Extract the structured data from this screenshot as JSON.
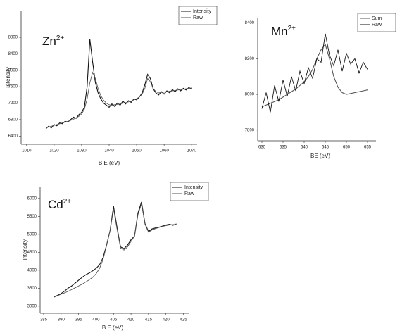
{
  "chart_data": [
    {
      "type": "line",
      "panel_label": {
        "element": "Zn",
        "charge": "2+"
      },
      "x_label": "B.E (eV)",
      "y_label": "Intensity",
      "legend": "upper right",
      "xlim": [
        1008,
        1072
      ],
      "xticks": [
        1010,
        1020,
        1030,
        1040,
        1050,
        1060,
        1070
      ],
      "ylim": [
        6200,
        9450
      ],
      "yticks": [
        6400,
        6800,
        7200,
        7600,
        8000,
        8400,
        8800
      ],
      "x": [
        1017,
        1018,
        1019,
        1020,
        1021,
        1022,
        1023,
        1024,
        1025,
        1026,
        1027,
        1028,
        1029,
        1030,
        1031,
        1032,
        1033,
        1034,
        1035,
        1036,
        1037,
        1038,
        1039,
        1040,
        1041,
        1042,
        1043,
        1044,
        1045,
        1046,
        1047,
        1048,
        1049,
        1050,
        1051,
        1052,
        1053,
        1054,
        1055,
        1056,
        1057,
        1058,
        1059,
        1060,
        1061,
        1062,
        1063,
        1064,
        1065,
        1066,
        1067,
        1068,
        1069,
        1070
      ],
      "series": [
        {
          "name": "Intensity",
          "color": "#111111",
          "values": [
            6580,
            6640,
            6600,
            6680,
            6650,
            6720,
            6700,
            6760,
            6740,
            6800,
            6860,
            6830,
            6920,
            6980,
            7100,
            7600,
            8750,
            8200,
            7700,
            7450,
            7300,
            7200,
            7150,
            7100,
            7180,
            7120,
            7200,
            7150,
            7250,
            7180,
            7260,
            7220,
            7300,
            7280,
            7350,
            7450,
            7650,
            7900,
            7800,
            7550,
            7450,
            7400,
            7480,
            7420,
            7500,
            7450,
            7530,
            7480,
            7550,
            7500,
            7560,
            7520,
            7580,
            7540
          ]
        },
        {
          "name": "Raw",
          "color": "#555555",
          "values": [
            6600,
            6620,
            6640,
            6660,
            6680,
            6700,
            6720,
            6740,
            6760,
            6780,
            6810,
            6840,
            6880,
            6940,
            7050,
            7300,
            7700,
            7950,
            7800,
            7550,
            7380,
            7270,
            7200,
            7160,
            7150,
            7160,
            7170,
            7180,
            7200,
            7210,
            7230,
            7250,
            7280,
            7310,
            7350,
            7420,
            7560,
            7800,
            7720,
            7560,
            7480,
            7450,
            7460,
            7470,
            7480,
            7490,
            7500,
            7510,
            7520,
            7530,
            7540,
            7550,
            7560,
            7570
          ]
        }
      ]
    },
    {
      "type": "line",
      "panel_label": {
        "element": "Mn",
        "charge": "2+"
      },
      "x_label": "BE (eV)",
      "legend": "upper right",
      "xlim": [
        629,
        657
      ],
      "xticks": [
        630,
        635,
        640,
        645,
        650,
        655
      ],
      "ylim": [
        7740,
        8430
      ],
      "yticks": [
        7800,
        8000,
        8200,
        8400
      ],
      "x": [
        630,
        631,
        632,
        633,
        634,
        635,
        636,
        637,
        638,
        639,
        640,
        641,
        642,
        643,
        644,
        645,
        646,
        647,
        648,
        649,
        650,
        651,
        652,
        653,
        654,
        655
      ],
      "series": [
        {
          "name": "Sum",
          "color": "#555555",
          "values": [
            7930,
            7940,
            7950,
            7960,
            7970,
            7985,
            8000,
            8015,
            8030,
            8050,
            8070,
            8100,
            8140,
            8200,
            8250,
            8280,
            8200,
            8100,
            8040,
            8010,
            8000,
            8005,
            8010,
            8015,
            8020,
            8025
          ]
        },
        {
          "name": "Raw",
          "color": "#111111",
          "values": [
            7920,
            8010,
            7900,
            8050,
            7960,
            8080,
            7990,
            8100,
            8020,
            8130,
            8060,
            8150,
            8090,
            8200,
            8180,
            8340,
            8220,
            8160,
            8250,
            8130,
            8230,
            8170,
            8200,
            8120,
            8180,
            8140
          ]
        }
      ]
    },
    {
      "type": "line",
      "panel_label": {
        "element": "Cd",
        "charge": "2+"
      },
      "x_label": "B.E (eV)",
      "y_label": "Intensity",
      "legend": "upper right",
      "xlim": [
        384,
        426.5
      ],
      "xticks": [
        385,
        390,
        395,
        400,
        405,
        410,
        415,
        420,
        425
      ],
      "ylim": [
        2800,
        6330
      ],
      "yticks": [
        3000,
        3500,
        4000,
        4500,
        5000,
        5500,
        6000
      ],
      "x": [
        388,
        389,
        390,
        391,
        392,
        393,
        394,
        395,
        396,
        397,
        398,
        399,
        400,
        401,
        402,
        403,
        404,
        405,
        406,
        407,
        408,
        409,
        410,
        411,
        412,
        413,
        414,
        415,
        416,
        417,
        418,
        419,
        420,
        421,
        422,
        423
      ],
      "series": [
        {
          "name": "Intensity",
          "color": "#111111",
          "values": [
            3260,
            3300,
            3350,
            3420,
            3500,
            3560,
            3640,
            3720,
            3800,
            3870,
            3920,
            3980,
            4050,
            4150,
            4350,
            4700,
            5100,
            5780,
            5200,
            4650,
            4600,
            4700,
            4850,
            4950,
            5600,
            5900,
            5300,
            5080,
            5150,
            5180,
            5200,
            5230,
            5260,
            5280,
            5250,
            5290
          ]
        },
        {
          "name": "Raw",
          "color": "#555555",
          "values": [
            3250,
            3290,
            3330,
            3370,
            3410,
            3460,
            3510,
            3560,
            3610,
            3670,
            3730,
            3800,
            3900,
            4050,
            4300,
            4680,
            5100,
            5700,
            5150,
            4620,
            4560,
            4650,
            4800,
            4950,
            5550,
            5850,
            5280,
            5060,
            5120,
            5160,
            5190,
            5220,
            5240,
            5260,
            5270,
            5280
          ]
        }
      ]
    }
  ]
}
